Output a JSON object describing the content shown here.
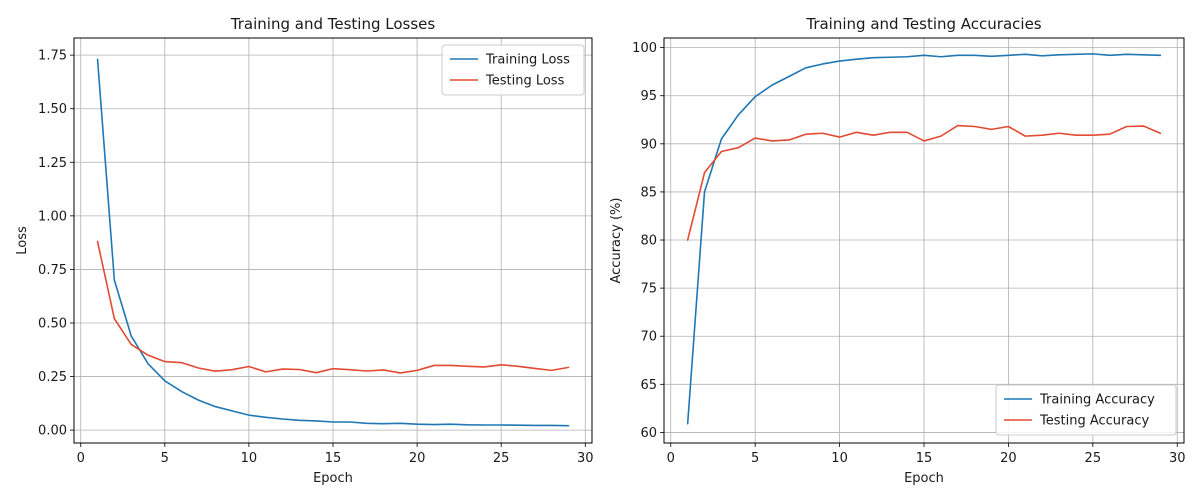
{
  "chart_data": [
    {
      "type": "line",
      "title": "Training and Testing Losses",
      "xlabel": "Epoch",
      "ylabel": "Loss",
      "xlim": [
        -0.4,
        30.4
      ],
      "ylim": [
        -0.06,
        1.83
      ],
      "xticks": [
        0,
        5,
        10,
        15,
        20,
        25,
        30
      ],
      "xtick_labels": [
        "0",
        "5",
        "10",
        "15",
        "20",
        "25",
        "30"
      ],
      "yticks": [
        0,
        0.25,
        0.5,
        0.75,
        1.0,
        1.25,
        1.5,
        1.75
      ],
      "ytick_labels": [
        "0.00",
        "0.25",
        "0.50",
        "0.75",
        "1.00",
        "1.25",
        "1.50",
        "1.75"
      ],
      "grid": true,
      "legend_position": "upper right",
      "x": [
        1,
        2,
        3,
        4,
        5,
        6,
        7,
        8,
        9,
        10,
        11,
        12,
        13,
        14,
        15,
        16,
        17,
        18,
        19,
        20,
        21,
        22,
        23,
        24,
        25,
        26,
        27,
        28,
        29
      ],
      "series": [
        {
          "name": "Training Loss",
          "color": "#1f77b4",
          "values": [
            1.73,
            0.7,
            0.44,
            0.31,
            0.23,
            0.18,
            0.14,
            0.11,
            0.09,
            0.07,
            0.06,
            0.052,
            0.046,
            0.043,
            0.038,
            0.038,
            0.032,
            0.03,
            0.032,
            0.028,
            0.026,
            0.028,
            0.025,
            0.024,
            0.024,
            0.023,
            0.022,
            0.022,
            0.021
          ]
        },
        {
          "name": "Testing Loss",
          "color": "#e24a33",
          "values": [
            0.88,
            0.52,
            0.4,
            0.35,
            0.32,
            0.315,
            0.29,
            0.275,
            0.282,
            0.297,
            0.272,
            0.285,
            0.283,
            0.268,
            0.287,
            0.282,
            0.276,
            0.281,
            0.267,
            0.279,
            0.302,
            0.302,
            0.298,
            0.295,
            0.305,
            0.298,
            0.288,
            0.279,
            0.293
          ]
        }
      ]
    },
    {
      "type": "line",
      "title": "Training and Testing Accuracies",
      "xlabel": "Epoch",
      "ylabel": "Accuracy (%)",
      "xlim": [
        -0.4,
        30.4
      ],
      "ylim": [
        58.9,
        101.0
      ],
      "xticks": [
        0,
        5,
        10,
        15,
        20,
        25,
        30
      ],
      "xtick_labels": [
        "0",
        "5",
        "10",
        "15",
        "20",
        "25",
        "30"
      ],
      "yticks": [
        60,
        65,
        70,
        75,
        80,
        85,
        90,
        95,
        100
      ],
      "ytick_labels": [
        "60",
        "65",
        "70",
        "75",
        "80",
        "85",
        "90",
        "95",
        "100"
      ],
      "grid": true,
      "legend_position": "lower right",
      "x": [
        1,
        2,
        3,
        4,
        5,
        6,
        7,
        8,
        9,
        10,
        11,
        12,
        13,
        14,
        15,
        16,
        17,
        18,
        19,
        20,
        21,
        22,
        23,
        24,
        25,
        26,
        27,
        28,
        29
      ],
      "series": [
        {
          "name": "Training Accuracy",
          "color": "#1f77b4",
          "values": [
            60.9,
            85.0,
            90.5,
            93.0,
            94.9,
            96.1,
            97.0,
            97.9,
            98.3,
            98.6,
            98.8,
            98.95,
            99.0,
            99.05,
            99.2,
            99.05,
            99.2,
            99.2,
            99.1,
            99.2,
            99.3,
            99.15,
            99.25,
            99.3,
            99.35,
            99.2,
            99.3,
            99.25,
            99.2
          ]
        },
        {
          "name": "Testing Accuracy",
          "color": "#e24a33",
          "values": [
            80.0,
            87.0,
            89.2,
            89.6,
            90.6,
            90.3,
            90.4,
            91.0,
            91.1,
            90.7,
            91.2,
            90.9,
            91.2,
            91.2,
            90.3,
            90.8,
            91.9,
            91.8,
            91.5,
            91.8,
            90.8,
            90.9,
            91.1,
            90.9,
            90.9,
            91.0,
            91.8,
            91.85,
            91.1
          ]
        }
      ]
    }
  ]
}
